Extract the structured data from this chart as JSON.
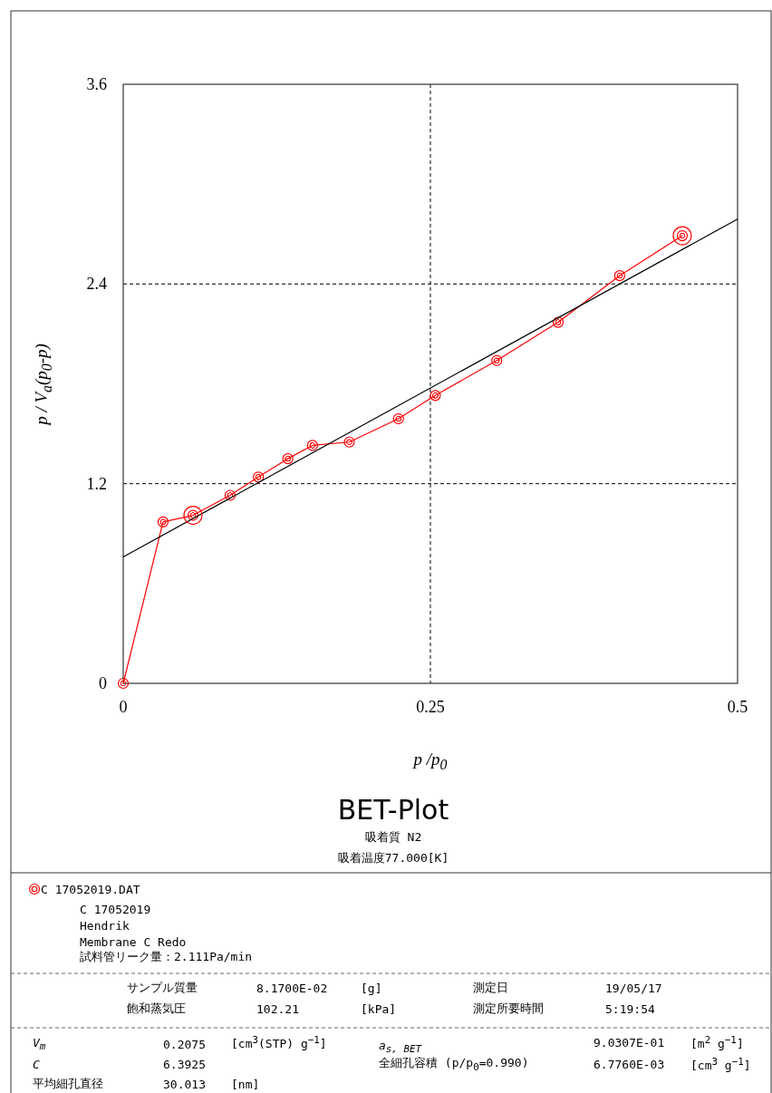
{
  "chart_data": {
    "type": "line",
    "title": "BET-Plot",
    "subtitle": "吸着質 N2",
    "xlabel": "p /p$_{0}$",
    "ylabel": "p / V$_{a}$(p$_{0}$-p)",
    "xlim": [
      0,
      0.5
    ],
    "xticks": [
      0,
      0.25,
      0.5
    ],
    "ylim": [
      0,
      3.6
    ],
    "yticks": [
      0,
      1.2,
      2.4,
      3.6
    ],
    "grid": true,
    "legend": "bottom",
    "series": [
      {
        "name": "C 17052019.DAT",
        "color": "#ff0000",
        "marker": "circle",
        "x": [
          0,
          0.0324,
          0.0568,
          0.087,
          0.11,
          0.134,
          0.154,
          0.184,
          0.224,
          0.254,
          0.304,
          0.354,
          0.404,
          0.455
        ],
        "values": [
          0,
          0.97,
          1.01,
          1.13,
          1.24,
          1.35,
          1.43,
          1.45,
          1.59,
          1.73,
          1.94,
          2.17,
          2.45,
          2.69
        ]
      },
      {
        "type": "line",
        "color": "#000000",
        "marker": "none",
        "x": [
          0,
          0.5
        ],
        "values": [
          0.76,
          2.79
        ]
      },
      {
        "type": "scatter",
        "color": "#ff0000",
        "marker": "circle",
        "x": [
          0.0568,
          0.455
        ],
        "values": [
          1.01,
          2.69
        ]
      }
    ],
    "annotations": [
      "吸着温度77.000[K]",
      "C 17052019",
      "Hendrik",
      "Membrane C Redo",
      "試料管リーク量：2.111Pa/min",
      "サンプル質量",
      "8.1700E-02",
      "[g]",
      "測定日",
      "19/05/17",
      "飽和蒸気圧",
      "102.21",
      "[kPa]",
      "測定所要時間",
      "5:19:54",
      "V$_{m}$",
      "0.2075",
      "[cm$^{3}$(STP) g$^{−1}$]",
      "a$_{s, BET}$",
      "9.0307E-01",
      "[m$^{2}$ g$^{−1}$]",
      "C",
      "6.3925",
      "全細孔容積 (p/p$_{0}$=0.990)",
      "6.7760E-03",
      "[cm$^{3}$ g$^{−1}$]",
      "平均細孔直径",
      "30.013",
      "[nm]"
    ]
  }
}
